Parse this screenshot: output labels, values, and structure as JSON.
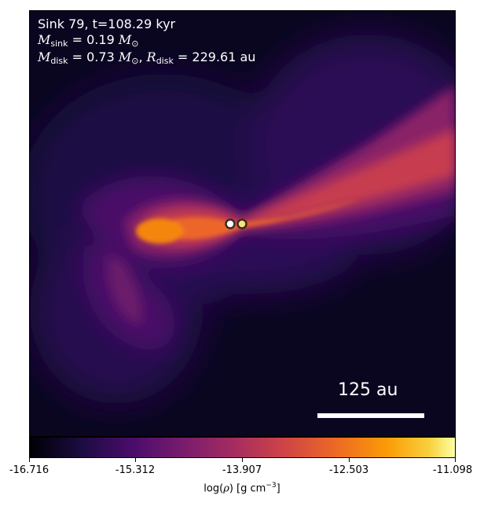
{
  "annotation": {
    "line1": "Sink 79, t=108.29 kyr",
    "sink_prefix": "M",
    "sink_sub": "sink",
    "sink_value": "= 0.19",
    "sun_symbol": "M",
    "sun_sub": "⊙",
    "disk_prefix": "M",
    "disk_sub": "disk",
    "disk_value": "= 0.73",
    "disk_sun": "M",
    "disk_sun_sub": "⊙",
    "radius_sep": ",",
    "radius_prefix": "R",
    "radius_sub": "disk",
    "radius_value": "= 229.61 au"
  },
  "scalebar": {
    "label": "125 au"
  },
  "colorbar": {
    "ticks": [
      "-16.716",
      "-15.312",
      "-13.907",
      "-12.503",
      "-11.098"
    ],
    "label_pre": "log(",
    "label_rho": "ρ",
    "label_post": ") [g cm",
    "label_exp": "−3",
    "label_end": "]",
    "colormap": "inferno"
  },
  "sinks": {
    "count": 2,
    "fill_colors": [
      "#ffffff",
      "#f6e27a"
    ],
    "outline_color": "#3a2a20"
  }
}
